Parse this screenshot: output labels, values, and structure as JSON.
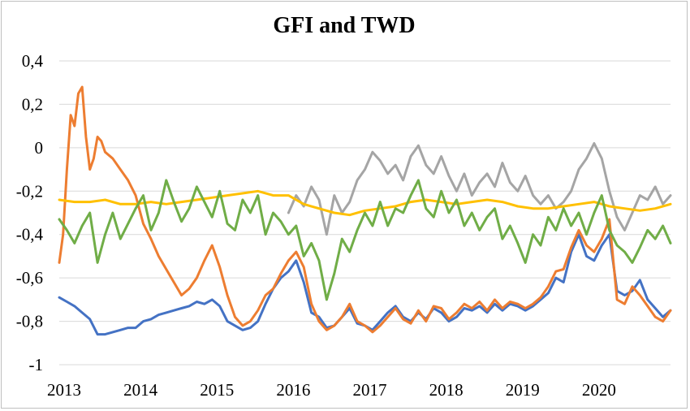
{
  "chart_data": {
    "type": "line",
    "title": "GFI and TWD",
    "xlabel": "",
    "ylabel": "",
    "xlim": [
      2013.0,
      2021.0
    ],
    "ylim": [
      -1.0,
      0.4
    ],
    "y_ticks": [
      0.4,
      0.2,
      0,
      -0.2,
      -0.4,
      -0.6,
      -0.8,
      -1
    ],
    "y_tick_labels": [
      "0,4",
      "0,2",
      "0",
      "-0,2",
      "-0,4",
      "-0,6",
      "-0,8",
      "-1"
    ],
    "x_ticks": [
      2013,
      2014,
      2015,
      2016,
      2017,
      2018,
      2019,
      2020
    ],
    "x_tick_labels": [
      "2013",
      "2014",
      "2015",
      "2016",
      "2017",
      "2018",
      "2019",
      "2020"
    ],
    "grid": "horizontal",
    "legend": "none",
    "series": [
      {
        "color": "#4472c4",
        "x": [
          2013.0,
          2013.1,
          2013.2,
          2013.3,
          2013.4,
          2013.5,
          2013.6,
          2013.7,
          2013.8,
          2013.9,
          2014.0,
          2014.1,
          2014.2,
          2014.3,
          2014.4,
          2014.5,
          2014.6,
          2014.7,
          2014.8,
          2014.9,
          2015.0,
          2015.1,
          2015.2,
          2015.3,
          2015.4,
          2015.5,
          2015.6,
          2015.7,
          2015.8,
          2015.9,
          2016.0,
          2016.1,
          2016.2,
          2016.3,
          2016.4,
          2016.5,
          2016.6,
          2016.7,
          2016.8,
          2016.9,
          2017.0,
          2017.1,
          2017.2,
          2017.3,
          2017.4,
          2017.5,
          2017.6,
          2017.7,
          2017.8,
          2017.9,
          2018.0,
          2018.1,
          2018.2,
          2018.3,
          2018.4,
          2018.5,
          2018.6,
          2018.7,
          2018.8,
          2018.9,
          2019.0,
          2019.1,
          2019.2,
          2019.3,
          2019.4,
          2019.5,
          2019.6,
          2019.7,
          2019.8,
          2019.9,
          2020.0,
          2020.1,
          2020.2,
          2020.3,
          2020.4,
          2020.5,
          2020.6,
          2020.7,
          2020.8,
          2020.9,
          2021.0
        ],
        "y": [
          -0.69,
          -0.71,
          -0.73,
          -0.76,
          -0.79,
          -0.86,
          -0.86,
          -0.85,
          -0.84,
          -0.83,
          -0.83,
          -0.8,
          -0.79,
          -0.77,
          -0.76,
          -0.75,
          -0.74,
          -0.73,
          -0.71,
          -0.72,
          -0.7,
          -0.73,
          -0.8,
          -0.82,
          -0.84,
          -0.83,
          -0.8,
          -0.72,
          -0.65,
          -0.6,
          -0.57,
          -0.52,
          -0.62,
          -0.76,
          -0.78,
          -0.83,
          -0.82,
          -0.78,
          -0.74,
          -0.81,
          -0.82,
          -0.84,
          -0.8,
          -0.76,
          -0.73,
          -0.78,
          -0.8,
          -0.76,
          -0.79,
          -0.74,
          -0.76,
          -0.8,
          -0.78,
          -0.74,
          -0.75,
          -0.73,
          -0.76,
          -0.72,
          -0.75,
          -0.72,
          -0.73,
          -0.75,
          -0.73,
          -0.7,
          -0.67,
          -0.6,
          -0.62,
          -0.48,
          -0.4,
          -0.5,
          -0.52,
          -0.45,
          -0.4,
          -0.66,
          -0.68,
          -0.66,
          -0.61,
          -0.7,
          -0.74,
          -0.78,
          -0.75
        ]
      },
      {
        "color": "#ed7d31",
        "x": [
          2013.0,
          2013.05,
          2013.1,
          2013.15,
          2013.2,
          2013.25,
          2013.3,
          2013.35,
          2013.4,
          2013.45,
          2013.5,
          2013.55,
          2013.6,
          2013.7,
          2013.8,
          2013.9,
          2014.0,
          2014.1,
          2014.2,
          2014.3,
          2014.4,
          2014.5,
          2014.6,
          2014.7,
          2014.8,
          2014.9,
          2015.0,
          2015.1,
          2015.2,
          2015.3,
          2015.4,
          2015.5,
          2015.6,
          2015.7,
          2015.8,
          2015.9,
          2016.0,
          2016.1,
          2016.2,
          2016.3,
          2016.4,
          2016.5,
          2016.6,
          2016.7,
          2016.8,
          2016.9,
          2017.0,
          2017.1,
          2017.2,
          2017.3,
          2017.4,
          2017.5,
          2017.6,
          2017.7,
          2017.8,
          2017.9,
          2018.0,
          2018.1,
          2018.2,
          2018.3,
          2018.4,
          2018.5,
          2018.6,
          2018.7,
          2018.8,
          2018.9,
          2019.0,
          2019.1,
          2019.2,
          2019.3,
          2019.4,
          2019.5,
          2019.6,
          2019.7,
          2019.8,
          2019.9,
          2020.0,
          2020.1,
          2020.2,
          2020.3,
          2020.4,
          2020.5,
          2020.6,
          2020.7,
          2020.8,
          2020.9,
          2021.0
        ],
        "y": [
          -0.53,
          -0.4,
          -0.1,
          0.15,
          0.1,
          0.25,
          0.28,
          0.05,
          -0.1,
          -0.05,
          0.05,
          0.03,
          -0.02,
          -0.05,
          -0.1,
          -0.15,
          -0.22,
          -0.35,
          -0.42,
          -0.5,
          -0.56,
          -0.62,
          -0.68,
          -0.65,
          -0.6,
          -0.52,
          -0.45,
          -0.55,
          -0.68,
          -0.78,
          -0.82,
          -0.8,
          -0.75,
          -0.68,
          -0.65,
          -0.58,
          -0.52,
          -0.48,
          -0.55,
          -0.72,
          -0.8,
          -0.84,
          -0.82,
          -0.78,
          -0.72,
          -0.8,
          -0.82,
          -0.85,
          -0.82,
          -0.78,
          -0.74,
          -0.79,
          -0.81,
          -0.75,
          -0.8,
          -0.73,
          -0.74,
          -0.79,
          -0.76,
          -0.72,
          -0.74,
          -0.71,
          -0.75,
          -0.7,
          -0.74,
          -0.71,
          -0.72,
          -0.74,
          -0.72,
          -0.69,
          -0.64,
          -0.57,
          -0.56,
          -0.46,
          -0.38,
          -0.45,
          -0.48,
          -0.42,
          -0.33,
          -0.7,
          -0.72,
          -0.64,
          -0.68,
          -0.73,
          -0.78,
          -0.8,
          -0.75
        ]
      },
      {
        "color": "#a5a5a5",
        "x": [
          2016.0,
          2016.1,
          2016.2,
          2016.3,
          2016.4,
          2016.5,
          2016.6,
          2016.7,
          2016.8,
          2016.9,
          2017.0,
          2017.1,
          2017.2,
          2017.3,
          2017.4,
          2017.5,
          2017.6,
          2017.7,
          2017.8,
          2017.9,
          2018.0,
          2018.1,
          2018.2,
          2018.3,
          2018.4,
          2018.5,
          2018.6,
          2018.7,
          2018.8,
          2018.9,
          2019.0,
          2019.1,
          2019.2,
          2019.3,
          2019.4,
          2019.5,
          2019.6,
          2019.7,
          2019.8,
          2019.9,
          2020.0,
          2020.1,
          2020.2,
          2020.3,
          2020.4,
          2020.5,
          2020.6,
          2020.7,
          2020.8,
          2020.9,
          2021.0
        ],
        "y": [
          -0.3,
          -0.22,
          -0.27,
          -0.18,
          -0.24,
          -0.4,
          -0.22,
          -0.3,
          -0.25,
          -0.15,
          -0.1,
          -0.02,
          -0.06,
          -0.12,
          -0.08,
          -0.15,
          -0.04,
          0.01,
          -0.08,
          -0.12,
          -0.04,
          -0.13,
          -0.2,
          -0.12,
          -0.22,
          -0.16,
          -0.12,
          -0.18,
          -0.07,
          -0.16,
          -0.2,
          -0.13,
          -0.22,
          -0.26,
          -0.22,
          -0.28,
          -0.25,
          -0.2,
          -0.1,
          -0.05,
          0.02,
          -0.05,
          -0.2,
          -0.32,
          -0.38,
          -0.3,
          -0.22,
          -0.24,
          -0.18,
          -0.26,
          -0.22
        ]
      },
      {
        "color": "#ffc000",
        "x": [
          2013.0,
          2013.2,
          2013.4,
          2013.6,
          2013.8,
          2014.0,
          2014.2,
          2014.4,
          2014.6,
          2014.8,
          2015.0,
          2015.2,
          2015.4,
          2015.6,
          2015.8,
          2016.0,
          2016.2,
          2016.4,
          2016.6,
          2016.8,
          2017.0,
          2017.2,
          2017.4,
          2017.6,
          2017.8,
          2018.0,
          2018.2,
          2018.4,
          2018.6,
          2018.8,
          2019.0,
          2019.2,
          2019.4,
          2019.6,
          2019.8,
          2020.0,
          2020.2,
          2020.4,
          2020.6,
          2020.8,
          2021.0
        ],
        "y": [
          -0.24,
          -0.25,
          -0.25,
          -0.24,
          -0.26,
          -0.26,
          -0.25,
          -0.26,
          -0.25,
          -0.24,
          -0.23,
          -0.22,
          -0.21,
          -0.2,
          -0.22,
          -0.22,
          -0.26,
          -0.28,
          -0.3,
          -0.31,
          -0.29,
          -0.28,
          -0.27,
          -0.25,
          -0.24,
          -0.25,
          -0.26,
          -0.25,
          -0.24,
          -0.25,
          -0.27,
          -0.28,
          -0.28,
          -0.27,
          -0.26,
          -0.25,
          -0.27,
          -0.28,
          -0.29,
          -0.28,
          -0.26
        ]
      },
      {
        "color": "#70ad47",
        "x": [
          2013.0,
          2013.1,
          2013.2,
          2013.3,
          2013.4,
          2013.5,
          2013.6,
          2013.7,
          2013.8,
          2013.9,
          2014.0,
          2014.1,
          2014.2,
          2014.3,
          2014.4,
          2014.5,
          2014.6,
          2014.7,
          2014.8,
          2014.9,
          2015.0,
          2015.1,
          2015.2,
          2015.3,
          2015.4,
          2015.5,
          2015.6,
          2015.7,
          2015.8,
          2015.9,
          2016.0,
          2016.1,
          2016.2,
          2016.3,
          2016.4,
          2016.5,
          2016.6,
          2016.7,
          2016.8,
          2016.9,
          2017.0,
          2017.1,
          2017.2,
          2017.3,
          2017.4,
          2017.5,
          2017.6,
          2017.7,
          2017.8,
          2017.9,
          2018.0,
          2018.1,
          2018.2,
          2018.3,
          2018.4,
          2018.5,
          2018.6,
          2018.7,
          2018.8,
          2018.9,
          2019.0,
          2019.1,
          2019.2,
          2019.3,
          2019.4,
          2019.5,
          2019.6,
          2019.7,
          2019.8,
          2019.9,
          2020.0,
          2020.1,
          2020.2,
          2020.3,
          2020.4,
          2020.5,
          2020.6,
          2020.7,
          2020.8,
          2020.9,
          2021.0
        ],
        "y": [
          -0.33,
          -0.38,
          -0.44,
          -0.36,
          -0.3,
          -0.53,
          -0.4,
          -0.3,
          -0.42,
          -0.35,
          -0.28,
          -0.22,
          -0.38,
          -0.3,
          -0.15,
          -0.25,
          -0.34,
          -0.28,
          -0.18,
          -0.25,
          -0.32,
          -0.2,
          -0.35,
          -0.38,
          -0.24,
          -0.3,
          -0.22,
          -0.4,
          -0.3,
          -0.34,
          -0.4,
          -0.36,
          -0.5,
          -0.44,
          -0.52,
          -0.7,
          -0.58,
          -0.42,
          -0.48,
          -0.38,
          -0.3,
          -0.36,
          -0.25,
          -0.36,
          -0.28,
          -0.3,
          -0.22,
          -0.15,
          -0.28,
          -0.32,
          -0.2,
          -0.3,
          -0.24,
          -0.36,
          -0.3,
          -0.38,
          -0.32,
          -0.28,
          -0.42,
          -0.36,
          -0.44,
          -0.53,
          -0.4,
          -0.45,
          -0.32,
          -0.38,
          -0.28,
          -0.36,
          -0.3,
          -0.4,
          -0.3,
          -0.22,
          -0.38,
          -0.45,
          -0.48,
          -0.53,
          -0.46,
          -0.38,
          -0.42,
          -0.36,
          -0.44
        ]
      }
    ]
  }
}
